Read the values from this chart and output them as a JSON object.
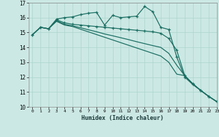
{
  "xlabel": "Humidex (Indice chaleur)",
  "xlim": [
    -0.5,
    23
  ],
  "ylim": [
    10,
    17
  ],
  "yticks": [
    10,
    11,
    12,
    13,
    14,
    15,
    16,
    17
  ],
  "xticks": [
    0,
    1,
    2,
    3,
    4,
    5,
    6,
    7,
    8,
    9,
    10,
    11,
    12,
    13,
    14,
    15,
    16,
    17,
    18,
    19,
    20,
    21,
    22,
    23
  ],
  "bg_color": "#cce8e4",
  "line_color": "#1a6e62",
  "grid_color": "#aad4cc",
  "line1": [
    14.85,
    15.35,
    15.25,
    15.9,
    16.0,
    16.05,
    16.2,
    16.3,
    16.35,
    15.5,
    16.15,
    16.0,
    16.05,
    16.1,
    16.75,
    16.4,
    15.35,
    15.2,
    13.35,
    12.0,
    11.5,
    11.1,
    10.7,
    10.35
  ],
  "line2": [
    14.85,
    15.35,
    15.25,
    15.85,
    15.65,
    15.55,
    15.5,
    15.45,
    15.4,
    15.35,
    15.3,
    15.25,
    15.2,
    15.15,
    15.1,
    15.05,
    14.95,
    14.6,
    13.8,
    12.1,
    11.55,
    11.1,
    10.7,
    10.35
  ],
  "line3": [
    14.85,
    15.35,
    15.25,
    15.8,
    15.55,
    15.45,
    15.32,
    15.18,
    15.05,
    14.9,
    14.78,
    14.65,
    14.52,
    14.38,
    14.25,
    14.12,
    14.0,
    13.6,
    12.8,
    12.1,
    11.55,
    11.1,
    10.7,
    10.35
  ],
  "line4": [
    14.85,
    15.35,
    15.25,
    15.75,
    15.5,
    15.4,
    15.22,
    15.04,
    14.86,
    14.68,
    14.5,
    14.32,
    14.14,
    13.96,
    13.78,
    13.6,
    13.42,
    13.0,
    12.2,
    12.1,
    11.55,
    11.1,
    10.7,
    10.35
  ]
}
